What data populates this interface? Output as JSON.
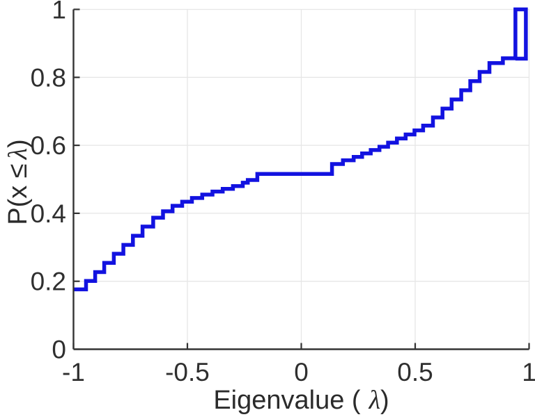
{
  "figure": {
    "background": "#ffffff",
    "title": ""
  },
  "chart_data": {
    "type": "line",
    "subtype": "empirical-cdf-staircase",
    "title": "",
    "xlabel": "Eigenvalue ( λ)",
    "ylabel": "P(x ≤ λ)",
    "xlabel_parts": {
      "pre": "Eigenvalue (",
      "lambda": "λ",
      "post": ")"
    },
    "ylabel_parts": {
      "pre": "P(x ≤",
      "lambda": "λ",
      "post": ")"
    },
    "xlim": [
      -1,
      1
    ],
    "ylim": [
      0,
      1
    ],
    "xticks": {
      "values": [
        -1,
        -0.5,
        0,
        0.5,
        1
      ],
      "labels": [
        "-1",
        "-0.5",
        "0",
        "0.5",
        "1"
      ]
    },
    "yticks": {
      "values": [
        0,
        0.2,
        0.4,
        0.6,
        0.8,
        1
      ],
      "labels": [
        "0",
        "0.2",
        "0.4",
        "0.6",
        "0.8",
        "1"
      ]
    },
    "grid": "on",
    "legend": "none",
    "style": {
      "line_color": "#1212e0",
      "line_width": 5.5,
      "grid_color": "#e6e6e6",
      "axis_color": "#333333",
      "tick_text_color": "#2f2f2f",
      "background": "#ffffff"
    },
    "series": [
      {
        "name": "eigenvalue-empirical-cdf",
        "start": [
          -1.0,
          0.176
        ],
        "jumps": [
          [
            -0.945,
            0.201
          ],
          [
            -0.905,
            0.227
          ],
          [
            -0.865,
            0.254
          ],
          [
            -0.823,
            0.281
          ],
          [
            -0.781,
            0.307
          ],
          [
            -0.739,
            0.334
          ],
          [
            -0.697,
            0.361
          ],
          [
            -0.65,
            0.387
          ],
          [
            -0.607,
            0.406
          ],
          [
            -0.565,
            0.422
          ],
          [
            -0.523,
            0.434
          ],
          [
            -0.48,
            0.445
          ],
          [
            -0.435,
            0.455
          ],
          [
            -0.39,
            0.464
          ],
          [
            -0.345,
            0.472
          ],
          [
            -0.3,
            0.48
          ],
          [
            -0.257,
            0.49
          ],
          [
            -0.235,
            0.498
          ],
          [
            -0.193,
            0.516
          ],
          [
            0.135,
            0.545
          ],
          [
            0.183,
            0.556
          ],
          [
            0.23,
            0.566
          ],
          [
            0.267,
            0.576
          ],
          [
            0.305,
            0.586
          ],
          [
            0.343,
            0.596
          ],
          [
            0.381,
            0.608
          ],
          [
            0.42,
            0.62
          ],
          [
            0.458,
            0.632
          ],
          [
            0.497,
            0.644
          ],
          [
            0.535,
            0.658
          ],
          [
            0.578,
            0.682
          ],
          [
            0.62,
            0.708
          ],
          [
            0.66,
            0.735
          ],
          [
            0.702,
            0.762
          ],
          [
            0.742,
            0.789
          ],
          [
            0.783,
            0.816
          ],
          [
            0.826,
            0.842
          ],
          [
            0.885,
            0.856
          ]
        ],
        "final_rect": {
          "x0": 0.94,
          "x1": 0.986,
          "top": 1.0,
          "bottom": 0.855
        }
      }
    ]
  }
}
